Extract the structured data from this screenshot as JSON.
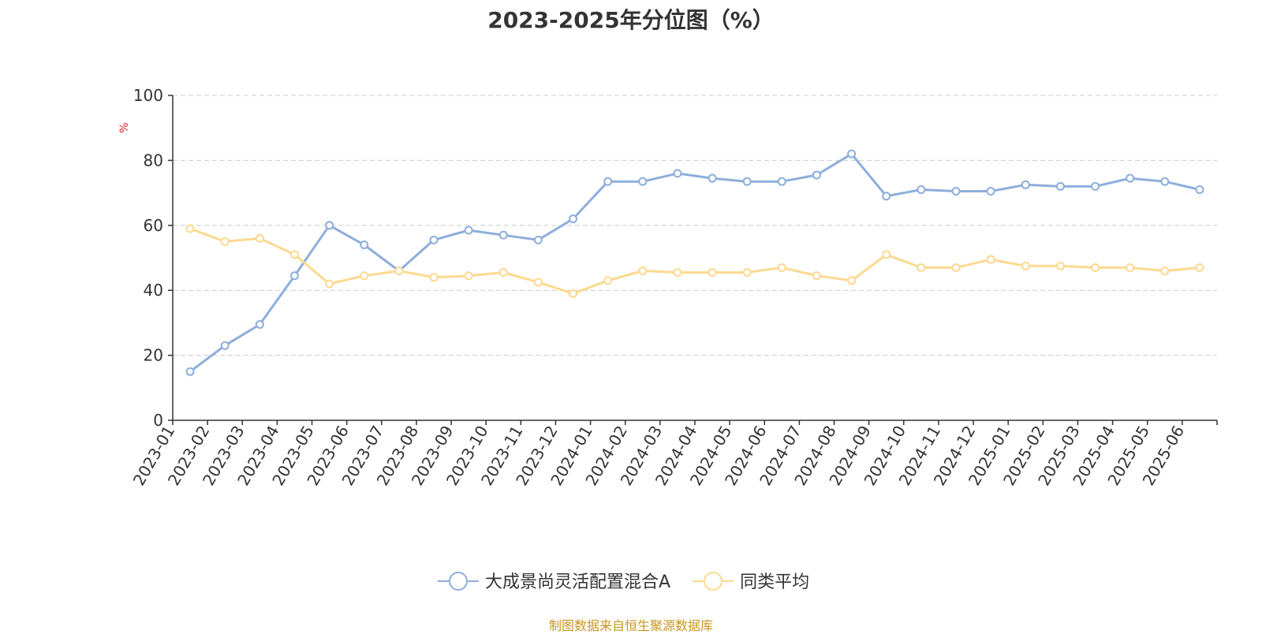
{
  "chart_data": {
    "type": "line",
    "title": "2023-2025年分位图（%）",
    "ylabel": "%",
    "xlabel": "",
    "ylim": [
      0,
      100
    ],
    "yticks": [
      0,
      20,
      40,
      60,
      80,
      100
    ],
    "grid": true,
    "legend_position": "bottom",
    "x": [
      "2023-01",
      "2023-02",
      "2023-03",
      "2023-04",
      "2023-05",
      "2023-06",
      "2023-07",
      "2023-08",
      "2023-09",
      "2023-10",
      "2023-11",
      "2023-12",
      "2024-01",
      "2024-02",
      "2024-03",
      "2024-04",
      "2024-05",
      "2024-06",
      "2024-07",
      "2024-08",
      "2024-09",
      "2024-10",
      "2024-11",
      "2024-12",
      "2025-01",
      "2025-02",
      "2025-03",
      "2025-04",
      "2025-05",
      "2025-06"
    ],
    "series": [
      {
        "name": "大成景尚灵活配置混合A",
        "color": "#8eaedb",
        "values": [
          15,
          23,
          29.5,
          44.5,
          60,
          54,
          46,
          55.5,
          58.5,
          57,
          55.5,
          62,
          73.5,
          73.5,
          76,
          74.5,
          73.5,
          73.5,
          75.5,
          82,
          69,
          71,
          70.5,
          70.5,
          72.5,
          72,
          72,
          74.5,
          73.5,
          71
        ]
      },
      {
        "name": "同类平均",
        "color": "#fcd98f",
        "values": [
          59,
          55,
          56,
          51,
          42,
          44.5,
          46,
          44,
          44.5,
          45.5,
          42.5,
          39,
          43,
          46,
          45.5,
          45.5,
          45.5,
          47,
          44.5,
          43,
          51,
          47,
          47,
          49.5,
          47.5,
          47.5,
          47,
          47,
          46,
          47
        ]
      }
    ]
  },
  "source_note": "制图数据来自恒生聚源数据库"
}
